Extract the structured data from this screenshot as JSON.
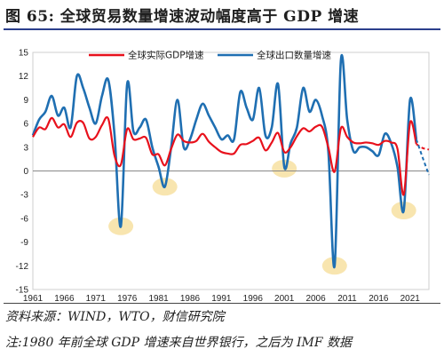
{
  "figure": {
    "title": "图 65:  全球贸易数量增速波动幅度高于 GDP 增速",
    "source": "资料来源：WIND，WTO，财信研究院",
    "note": "注:1980 年前全球 GDP 增速来自世界银行，之后为 IMF 数据"
  },
  "chart_data": {
    "type": "line",
    "title": "",
    "xlabel": "",
    "ylabel": "",
    "xlim": [
      1961,
      2024
    ],
    "ylim": [
      -15,
      15
    ],
    "yticks": [
      -15,
      -12,
      -9,
      -6,
      -3,
      0,
      3,
      6,
      9,
      12,
      15
    ],
    "xticks": [
      1961,
      1966,
      1971,
      1976,
      1981,
      1986,
      1991,
      1996,
      2001,
      2006,
      2011,
      2016,
      2021
    ],
    "grid": false,
    "legend_position": "top-center",
    "x": [
      1961,
      1962,
      1963,
      1964,
      1965,
      1966,
      1967,
      1968,
      1969,
      1970,
      1971,
      1972,
      1973,
      1974,
      1975,
      1976,
      1977,
      1978,
      1979,
      1980,
      1981,
      1982,
      1983,
      1984,
      1985,
      1986,
      1987,
      1988,
      1989,
      1990,
      1991,
      1992,
      1993,
      1994,
      1995,
      1996,
      1997,
      1998,
      1999,
      2000,
      2001,
      2002,
      2003,
      2004,
      2005,
      2006,
      2007,
      2008,
      2009,
      2010,
      2011,
      2012,
      2013,
      2014,
      2015,
      2016,
      2017,
      2018,
      2019,
      2020,
      2021,
      2022
    ],
    "series": [
      {
        "name": "全球实际GDP增速",
        "color": "#e8111c",
        "style": "solid",
        "values": [
          4.3,
          5.5,
          5.3,
          6.7,
          5.5,
          5.9,
          4.3,
          6.1,
          6.1,
          4.1,
          4.3,
          5.8,
          6.6,
          1.9,
          0.8,
          5.3,
          4.0,
          4.1,
          4.2,
          2.1,
          2.1,
          0.7,
          2.8,
          4.6,
          3.8,
          3.6,
          3.8,
          4.7,
          3.7,
          3.0,
          2.4,
          2.2,
          2.2,
          3.3,
          3.4,
          3.8,
          4.2,
          2.6,
          3.6,
          4.8,
          2.4,
          3.0,
          4.4,
          5.4,
          5.0,
          5.6,
          5.6,
          3.0,
          -0.1,
          5.4,
          4.3,
          3.6,
          3.5,
          3.6,
          3.5,
          3.3,
          3.8,
          3.6,
          2.8,
          -3.0,
          6.1,
          3.4
        ]
      },
      {
        "name": "全球出口数量增速",
        "color": "#1f6fb2",
        "style": "solid",
        "values": [
          4.5,
          6.5,
          7.5,
          9.5,
          7.0,
          8.0,
          5.5,
          12.0,
          10.5,
          8.0,
          6.0,
          9.5,
          11.5,
          4.5,
          -7.0,
          11.0,
          5.0,
          5.5,
          6.5,
          3.0,
          0.5,
          -2.0,
          3.0,
          9.0,
          3.0,
          4.0,
          6.5,
          8.5,
          7.0,
          5.5,
          4.0,
          4.5,
          4.0,
          10.0,
          8.0,
          6.5,
          10.5,
          4.5,
          5.5,
          11.0,
          0.5,
          3.5,
          5.5,
          10.5,
          7.5,
          9.0,
          7.0,
          2.5,
          -12.0,
          14.0,
          6.5,
          2.5,
          3.0,
          3.0,
          2.5,
          2.0,
          4.7,
          3.5,
          0.5,
          -5.0,
          9.0,
          4.0
        ]
      }
    ],
    "forecast": [
      {
        "series": "全球实际GDP增速",
        "x": [
          2022,
          2023,
          2024
        ],
        "values": [
          3.4,
          2.9,
          2.7
        ],
        "style": "dashed"
      },
      {
        "series": "全球出口数量增速",
        "x": [
          2022,
          2023,
          2024
        ],
        "values": [
          4.0,
          1.7,
          -0.5
        ],
        "style": "dashed"
      }
    ],
    "highlights": [
      {
        "x": 1975,
        "y": -7.0
      },
      {
        "x": 1982,
        "y": -2.0
      },
      {
        "x": 2001,
        "y": 0.3
      },
      {
        "x": 2009,
        "y": -12.0
      },
      {
        "x": 2020,
        "y": -5.0
      }
    ],
    "highlight_color": "#f7e2a6"
  }
}
